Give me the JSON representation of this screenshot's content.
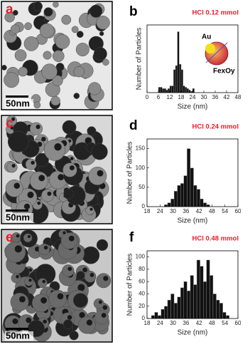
{
  "images": [
    {
      "label": "a",
      "scale_bar": "50nm"
    },
    {
      "label": "c",
      "scale_bar": "50nm"
    },
    {
      "label": "e",
      "scale_bar": "50nm"
    }
  ],
  "chart_data": [
    {
      "type": "histogram",
      "panel_label": "b",
      "annotation": "HCl 0.12 mmol",
      "annotation_color": "#e3202b",
      "inset": {
        "core": "Au",
        "shell": "FexOy"
      },
      "xlabel": "Size (nm)",
      "ylabel": "Number of Particles",
      "color": "#111111",
      "bins": [
        6,
        7,
        8,
        9,
        10,
        11,
        12,
        13,
        14,
        15,
        16,
        17,
        18,
        19,
        20,
        21,
        22,
        23,
        24,
        25
      ],
      "values": [
        4,
        4,
        3,
        3,
        2,
        3,
        5,
        5,
        17,
        20,
        45,
        21,
        17,
        5,
        4,
        3,
        2,
        1,
        3
      ],
      "xlim": [
        0,
        48
      ],
      "xticks": [
        0,
        6,
        12,
        18,
        24,
        30,
        36,
        42,
        48
      ],
      "ylim": [
        0,
        50
      ]
    },
    {
      "type": "histogram",
      "panel_label": "d",
      "annotation": "HCl 0.24 mmol",
      "annotation_color": "#e3202b",
      "xlabel": "Size (nm)",
      "ylabel": "Number of Particles",
      "color": "#111111",
      "bins": [
        26,
        27.5,
        29,
        30.5,
        32,
        33.5,
        35,
        36.5,
        38,
        39.5,
        41,
        42.5,
        44,
        45.5,
        47
      ],
      "values": [
        5,
        10,
        20,
        40,
        55,
        60,
        80,
        150,
        100,
        55,
        45,
        20,
        10,
        5
      ],
      "xlim": [
        18,
        60
      ],
      "xticks": [
        18,
        24,
        30,
        36,
        42,
        48,
        54,
        60
      ],
      "ylim": [
        0,
        175
      ],
      "yticks": [
        0,
        50,
        100,
        150
      ]
    },
    {
      "type": "histogram",
      "panel_label": "f",
      "annotation": "HCl 0.48 mmol",
      "annotation_color": "#e3202b",
      "xlabel": "Size (nm)",
      "ylabel": "Number of Particles",
      "color": "#111111",
      "bins": [
        20,
        21.5,
        23,
        24.5,
        26,
        27.5,
        29,
        30.5,
        32,
        33.5,
        35,
        36.5,
        38,
        39.5,
        41,
        42.5,
        44,
        45.5,
        47,
        48.5,
        50,
        51.5,
        53,
        54.5,
        56
      ],
      "values": [
        5,
        10,
        5,
        15,
        20,
        30,
        40,
        25,
        35,
        50,
        60,
        45,
        70,
        55,
        95,
        85,
        60,
        95,
        70,
        40,
        30,
        25,
        10,
        5
      ],
      "xlim": [
        18,
        60
      ],
      "xticks": [
        18,
        24,
        30,
        36,
        42,
        48,
        54,
        60
      ],
      "ylim": [
        0,
        110
      ],
      "yticks": [
        0,
        20,
        40,
        60,
        80,
        100
      ]
    }
  ]
}
